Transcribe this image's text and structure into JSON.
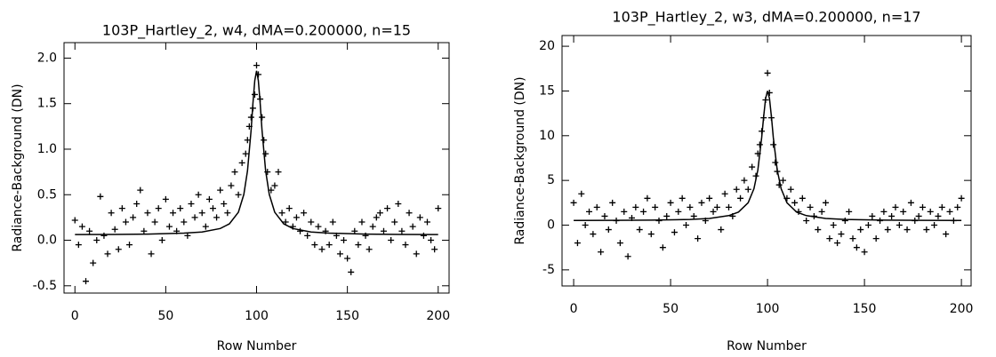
{
  "chart_data": [
    {
      "type": "scatter",
      "title": "103P_Hartley_2, w4, dMA=0.200000, n=15",
      "x_label": "Row Number",
      "y_label": "Radiance-Background (DN)",
      "xlim": [
        -6,
        206
      ],
      "ylim": [
        -0.58,
        2.17
      ],
      "xticks": [
        0,
        50,
        100,
        150,
        200
      ],
      "yticks": [
        -0.5,
        {
          "value": 0,
          "label": "0.0"
        },
        0.5,
        {
          "value": 1,
          "label": "1.0"
        },
        1.5,
        {
          "value": 2,
          "label": "2.0"
        }
      ],
      "series": [
        {
          "color": "#000000",
          "marker": "plus",
          "x": [
            0,
            2,
            4,
            6,
            8,
            10,
            12,
            14,
            16,
            18,
            20,
            22,
            24,
            26,
            28,
            30,
            32,
            34,
            36,
            38,
            40,
            42,
            44,
            46,
            48,
            50,
            52,
            54,
            56,
            58,
            60,
            62,
            64,
            66,
            68,
            70,
            72,
            74,
            76,
            78,
            80,
            82,
            84,
            86,
            88,
            90,
            92,
            94,
            95,
            96,
            97,
            98,
            99,
            100,
            101,
            102,
            103,
            104,
            105,
            106,
            108,
            110,
            112,
            114,
            116,
            118,
            120,
            122,
            124,
            126,
            128,
            130,
            132,
            134,
            136,
            138,
            140,
            142,
            144,
            146,
            148,
            150,
            152,
            154,
            156,
            158,
            160,
            162,
            164,
            166,
            168,
            170,
            172,
            174,
            176,
            178,
            180,
            182,
            184,
            186,
            188,
            190,
            192,
            194,
            196,
            198,
            200
          ],
          "values": [
            0.22,
            -0.05,
            0.15,
            -0.45,
            0.1,
            -0.25,
            0.0,
            0.48,
            0.05,
            -0.15,
            0.3,
            0.12,
            -0.1,
            0.35,
            0.2,
            -0.05,
            0.25,
            0.4,
            0.55,
            0.1,
            0.3,
            -0.15,
            0.2,
            0.35,
            0.0,
            0.45,
            0.15,
            0.3,
            0.1,
            0.35,
            0.2,
            0.05,
            0.4,
            0.25,
            0.5,
            0.3,
            0.15,
            0.45,
            0.35,
            0.25,
            0.55,
            0.4,
            0.3,
            0.6,
            0.75,
            0.5,
            0.85,
            0.95,
            1.1,
            1.25,
            1.35,
            1.45,
            1.6,
            1.92,
            1.82,
            1.55,
            1.35,
            1.1,
            0.95,
            0.75,
            0.55,
            0.6,
            0.75,
            0.3,
            0.2,
            0.35,
            0.15,
            0.25,
            0.1,
            0.3,
            0.05,
            0.2,
            -0.05,
            0.15,
            -0.1,
            0.1,
            -0.05,
            0.2,
            0.05,
            -0.15,
            0.0,
            -0.2,
            -0.35,
            0.1,
            -0.05,
            0.2,
            0.05,
            -0.1,
            0.15,
            0.25,
            0.3,
            0.1,
            0.35,
            0.0,
            0.2,
            0.4,
            0.1,
            -0.05,
            0.3,
            0.15,
            -0.15,
            0.25,
            0.05,
            0.2,
            0.0,
            -0.1,
            0.35
          ]
        },
        {
          "color": "#000000",
          "line": true,
          "x": [
            0,
            20,
            40,
            60,
            70,
            80,
            85,
            90,
            93,
            95,
            97,
            98,
            99,
            100,
            101,
            102,
            103,
            105,
            107,
            110,
            115,
            120,
            130,
            140,
            160,
            180,
            200
          ],
          "values": [
            0.063,
            0.064,
            0.068,
            0.078,
            0.091,
            0.129,
            0.18,
            0.308,
            0.503,
            0.762,
            1.212,
            1.5,
            1.754,
            1.86,
            1.754,
            1.5,
            1.212,
            0.762,
            0.503,
            0.308,
            0.18,
            0.129,
            0.091,
            0.078,
            0.068,
            0.064,
            0.063
          ]
        }
      ]
    },
    {
      "type": "scatter",
      "title": "103P_Hartley_2, w3, dMA=0.200000, n=17",
      "x_label": "Row Number",
      "y_label": "Radiance-Background (DN)",
      "xlim": [
        -6,
        205
      ],
      "ylim": [
        -6.8,
        21.2
      ],
      "xticks": [
        0,
        50,
        100,
        150,
        200
      ],
      "yticks": [
        -5,
        0,
        5,
        10,
        15,
        20
      ],
      "series": [
        {
          "color": "#000000",
          "marker": "plus",
          "x": [
            0,
            2,
            4,
            6,
            8,
            10,
            12,
            14,
            16,
            18,
            20,
            22,
            24,
            26,
            28,
            30,
            32,
            34,
            36,
            38,
            40,
            42,
            44,
            46,
            48,
            50,
            52,
            54,
            56,
            58,
            60,
            62,
            64,
            66,
            68,
            70,
            72,
            74,
            76,
            78,
            80,
            82,
            84,
            86,
            88,
            90,
            92,
            94,
            95,
            96,
            97,
            98,
            99,
            100,
            101,
            102,
            103,
            104,
            105,
            106,
            108,
            110,
            112,
            114,
            116,
            118,
            120,
            122,
            124,
            126,
            128,
            130,
            132,
            134,
            136,
            138,
            140,
            142,
            144,
            146,
            148,
            150,
            152,
            154,
            156,
            158,
            160,
            162,
            164,
            166,
            168,
            170,
            172,
            174,
            176,
            178,
            180,
            182,
            184,
            186,
            188,
            190,
            192,
            194,
            196,
            198,
            200
          ],
          "values": [
            2.5,
            -2,
            3.5,
            0,
            1.5,
            -1,
            2,
            -3,
            1,
            -0.5,
            2.5,
            0.5,
            -2,
            1.5,
            -3.5,
            0.8,
            2,
            -0.5,
            1.5,
            3,
            -1,
            2,
            0.5,
            -2.5,
            1,
            2.5,
            -0.8,
            1.5,
            3,
            0,
            2,
            1,
            -1.5,
            2.5,
            0.5,
            3,
            1.5,
            2,
            -0.5,
            3.5,
            2,
            1,
            4,
            3,
            5,
            4,
            6.5,
            5.5,
            8,
            9,
            10.5,
            12,
            14,
            17,
            14.8,
            12,
            9,
            7,
            6,
            4.5,
            5,
            3,
            4,
            2.5,
            1.5,
            3,
            0.5,
            2,
            1,
            -0.5,
            1.5,
            2.5,
            -1.5,
            0,
            -2,
            -1,
            0.5,
            1.5,
            -1.5,
            -2.5,
            -0.5,
            -3,
            0,
            1,
            -1.5,
            0.5,
            1.5,
            -0.5,
            1,
            2,
            0,
            1.5,
            -0.5,
            2.5,
            0.5,
            1,
            2,
            -0.5,
            1.5,
            0,
            1,
            2,
            -1,
            1.5,
            0.5,
            2,
            3
          ]
        },
        {
          "color": "#000000",
          "line": true,
          "x": [
            0,
            20,
            40,
            60,
            70,
            80,
            85,
            90,
            93,
            95,
            97,
            98,
            99,
            100,
            101,
            102,
            103,
            105,
            107,
            110,
            115,
            120,
            130,
            140,
            160,
            180,
            200
          ],
          "values": [
            0.52,
            0.54,
            0.56,
            0.64,
            0.75,
            1.06,
            1.46,
            2.5,
            4.07,
            6.16,
            9.78,
            12.1,
            14.15,
            15,
            14.15,
            12.1,
            9.78,
            6.16,
            4.07,
            2.5,
            1.46,
            1.06,
            0.75,
            0.64,
            0.56,
            0.54,
            0.52
          ]
        }
      ]
    }
  ]
}
